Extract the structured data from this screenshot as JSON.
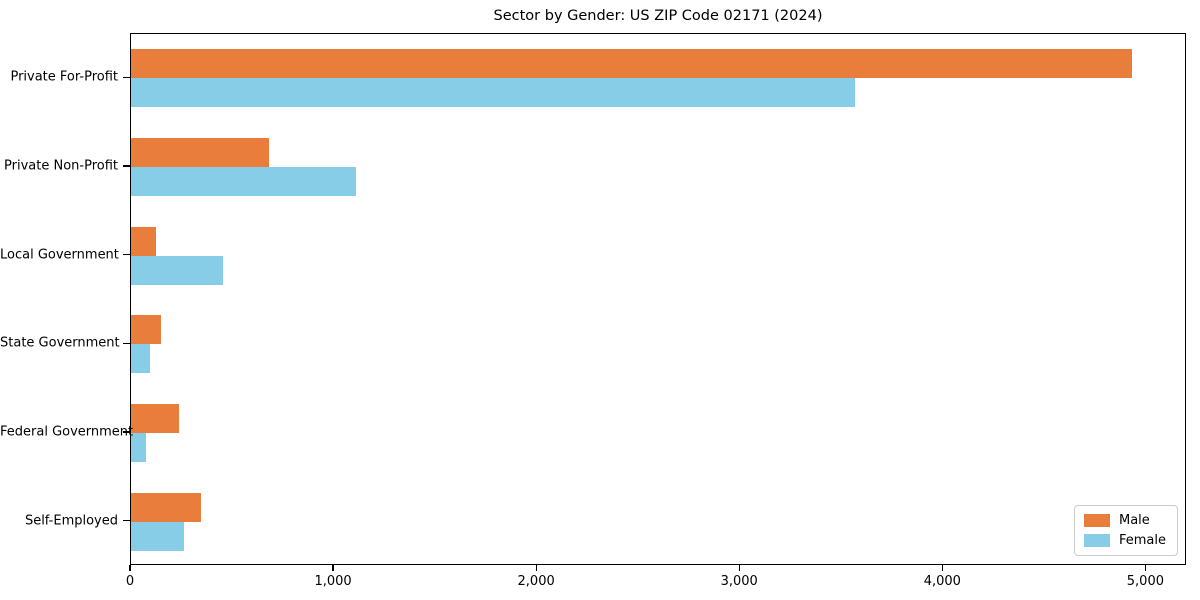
{
  "chart_data": {
    "type": "bar",
    "orientation": "horizontal",
    "title": "Sector by Gender: US ZIP Code 02171 (2024)",
    "categories": [
      "Private For-Profit",
      "Private Non-Profit",
      "Local Government",
      "State Government",
      "Federal Government",
      "Self-Employed"
    ],
    "series": [
      {
        "name": "Male",
        "color": "#E87D3C",
        "values": [
          4940,
          680,
          125,
          148,
          238,
          344
        ]
      },
      {
        "name": "Female",
        "color": "#87CDE8",
        "values": [
          3570,
          1110,
          455,
          93,
          74,
          262
        ]
      }
    ],
    "xlabel": "",
    "ylabel": "",
    "xlim": [
      0,
      5200
    ],
    "x_ticks": [
      {
        "value": 0,
        "label": "0"
      },
      {
        "value": 1000,
        "label": "1,000"
      },
      {
        "value": 2000,
        "label": "2,000"
      },
      {
        "value": 3000,
        "label": "3,000"
      },
      {
        "value": 4000,
        "label": "4,000"
      },
      {
        "value": 5000,
        "label": "5,000"
      }
    ],
    "grid": false,
    "legend_position": "lower right"
  }
}
